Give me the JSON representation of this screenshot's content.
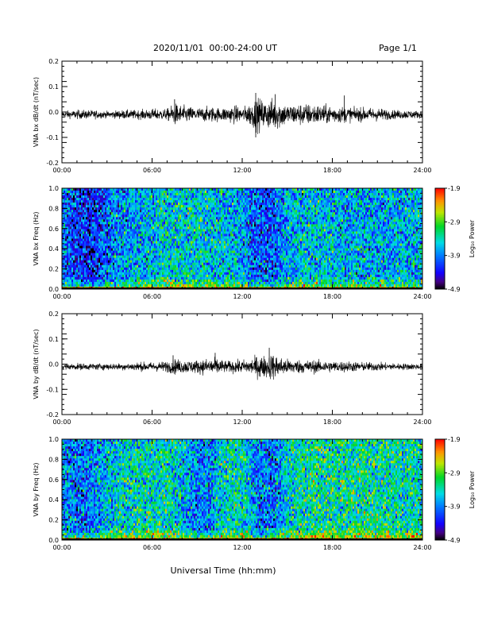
{
  "header": {
    "date_range": "2020/11/01  00:00-24:00 UT",
    "page": "Page 1/1"
  },
  "x_axis": {
    "label": "Universal Time (hh:mm)",
    "ticks": [
      "00:00",
      "06:00",
      "12:00",
      "18:00",
      "24:00"
    ],
    "range_hours": [
      0,
      24
    ]
  },
  "chart_data": [
    {
      "type": "line",
      "name": "bx-waveform",
      "ylabel": "VNA bx dB/dt (nT/sec)",
      "ylim": [
        -0.2,
        0.2
      ],
      "yticks": [
        "0.2",
        "0.1",
        "0.0",
        "-0.1",
        "-0.2"
      ],
      "ytick_values": [
        0.2,
        0.1,
        0.0,
        -0.1,
        -0.2
      ],
      "baseline": -0.01,
      "envelope_hours": [
        0,
        1,
        2,
        3,
        4,
        5,
        6,
        7,
        7.5,
        8,
        9,
        10,
        10.5,
        11,
        11.5,
        12,
        12.5,
        13,
        13.5,
        14,
        14.5,
        15,
        16,
        17,
        18,
        19,
        20,
        21,
        22,
        23,
        24
      ],
      "envelope_amplitude": [
        0.015,
        0.02,
        0.02,
        0.015,
        0.02,
        0.02,
        0.025,
        0.025,
        0.05,
        0.04,
        0.03,
        0.035,
        0.03,
        0.035,
        0.04,
        0.03,
        0.05,
        0.075,
        0.06,
        0.07,
        0.065,
        0.045,
        0.05,
        0.045,
        0.04,
        0.035,
        0.03,
        0.03,
        0.02,
        0.02,
        0.015
      ],
      "peaks": [
        {
          "hour": 7.5,
          "value": 0.05
        },
        {
          "hour": 12.9,
          "value": 0.075
        },
        {
          "hour": 12.9,
          "value": -0.1
        },
        {
          "hour": 14.2,
          "value": 0.07
        },
        {
          "hour": 18.8,
          "value": 0.065
        }
      ]
    },
    {
      "type": "heatmap",
      "name": "bx-spectrogram",
      "ylabel": "VNA bx Freq (Hz)",
      "ylim": [
        0.0,
        1.0
      ],
      "yticks": [
        "1.0",
        "0.8",
        "0.6",
        "0.4",
        "0.2",
        "0.0"
      ],
      "ytick_values": [
        1.0,
        0.8,
        0.6,
        0.4,
        0.2,
        0.0
      ],
      "colorbar": {
        "label": "Log₁₀ Power",
        "range": [
          -4.9,
          -1.9
        ],
        "ticks": [
          "-1.9",
          "-2.9",
          "-3.9",
          "-4.9"
        ],
        "tick_values": [
          -1.9,
          -2.9,
          -3.9,
          -4.9
        ]
      },
      "profile_hours": [
        0,
        1,
        2,
        3,
        4,
        5,
        6,
        7,
        8,
        9,
        10,
        11,
        12,
        13,
        14,
        15,
        16,
        17,
        18,
        19,
        20,
        21,
        22,
        23,
        24
      ],
      "profile_background_log_power": [
        -4.0,
        -4.2,
        -4.3,
        -4.0,
        -3.8,
        -3.7,
        -3.6,
        -3.5,
        -3.5,
        -3.5,
        -3.6,
        -3.6,
        -3.7,
        -4.1,
        -4.1,
        -3.7,
        -3.6,
        -3.6,
        -3.6,
        -3.7,
        -3.7,
        -3.7,
        -3.7,
        -3.7,
        -3.6
      ],
      "low_frequency_log_power": -2.6
    },
    {
      "type": "line",
      "name": "by-waveform",
      "ylabel": "VNA by dB/dt (nT/sec)",
      "ylim": [
        -0.2,
        0.2
      ],
      "yticks": [
        "0.2",
        "0.1",
        "0.0",
        "-0.1",
        "-0.2"
      ],
      "ytick_values": [
        0.2,
        0.1,
        0.0,
        -0.1,
        -0.2
      ],
      "baseline": -0.01,
      "envelope_hours": [
        0,
        1,
        2,
        3,
        4,
        5,
        6,
        7,
        7.5,
        8,
        9,
        10,
        10.5,
        11,
        11.5,
        12,
        12.5,
        13,
        13.5,
        14,
        14.5,
        15,
        16,
        17,
        18,
        19,
        20,
        21,
        22,
        23,
        24
      ],
      "envelope_amplitude": [
        0.012,
        0.015,
        0.015,
        0.015,
        0.015,
        0.02,
        0.02,
        0.025,
        0.035,
        0.03,
        0.03,
        0.04,
        0.035,
        0.025,
        0.03,
        0.03,
        0.035,
        0.05,
        0.05,
        0.06,
        0.045,
        0.035,
        0.03,
        0.03,
        0.025,
        0.025,
        0.02,
        0.02,
        0.015,
        0.015,
        0.012
      ],
      "peaks": [
        {
          "hour": 10.2,
          "value": 0.045
        },
        {
          "hour": 13.8,
          "value": 0.065
        },
        {
          "hour": 13.2,
          "value": -0.05
        },
        {
          "hour": 7.4,
          "value": 0.035
        }
      ]
    },
    {
      "type": "heatmap",
      "name": "by-spectrogram",
      "ylabel": "VNA by Freq (Hz)",
      "ylim": [
        0.0,
        1.0
      ],
      "yticks": [
        "1.0",
        "0.8",
        "0.6",
        "0.4",
        "0.2",
        "0.0"
      ],
      "ytick_values": [
        1.0,
        0.8,
        0.6,
        0.4,
        0.2,
        0.0
      ],
      "colorbar": {
        "label": "Log₁₀ Power",
        "range": [
          -4.9,
          -1.9
        ],
        "ticks": [
          "-1.9",
          "-2.9",
          "-3.9",
          "-4.9"
        ],
        "tick_values": [
          -1.9,
          -2.9,
          -3.9,
          -4.9
        ]
      },
      "profile_hours": [
        0,
        1,
        2,
        3,
        4,
        5,
        6,
        7,
        8,
        9,
        10,
        11,
        12,
        13,
        14,
        15,
        16,
        17,
        18,
        19,
        20,
        21,
        22,
        23,
        24
      ],
      "profile_background_log_power": [
        -3.8,
        -4.0,
        -3.9,
        -3.6,
        -3.5,
        -3.4,
        -3.4,
        -3.4,
        -3.6,
        -3.9,
        -3.8,
        -3.4,
        -3.4,
        -3.9,
        -4.0,
        -3.5,
        -3.3,
        -3.3,
        -3.3,
        -3.3,
        -3.3,
        -3.3,
        -3.3,
        -3.4,
        -3.4
      ],
      "low_frequency_log_power": -2.6
    }
  ]
}
